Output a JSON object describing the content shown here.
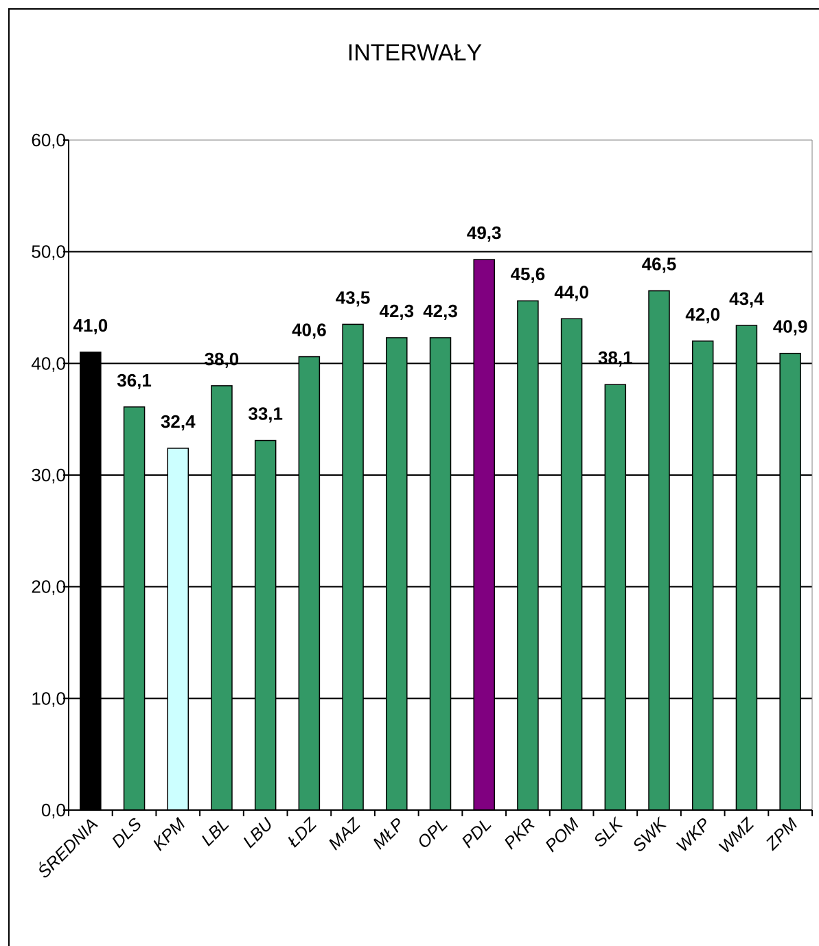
{
  "chart_data": {
    "type": "bar",
    "title": "INTERWAŁY",
    "categories": [
      "ŚREDNIA",
      "DLS",
      "KPM",
      "LBL",
      "LBU",
      "ŁDZ",
      "MAZ",
      "MŁP",
      "OPL",
      "PDL",
      "PKR",
      "POM",
      "SLK",
      "SWK",
      "WKP",
      "WMZ",
      "ZPM"
    ],
    "values": [
      41.0,
      36.1,
      32.4,
      38.0,
      33.1,
      40.6,
      43.5,
      42.3,
      42.3,
      49.3,
      45.6,
      44.0,
      38.1,
      46.5,
      42.0,
      43.4,
      40.9
    ],
    "value_labels": [
      "41,0",
      "36,1",
      "32,4",
      "38,0",
      "33,1",
      "40,6",
      "43,5",
      "42,3",
      "42,3",
      "49,3",
      "45,6",
      "44,0",
      "38,1",
      "46,5",
      "42,0",
      "43,4",
      "40,9"
    ],
    "bar_colors": [
      "#000000",
      "#339966",
      "#ccffff",
      "#339966",
      "#339966",
      "#339966",
      "#339966",
      "#339966",
      "#339966",
      "#800080",
      "#339966",
      "#339966",
      "#339966",
      "#339966",
      "#339966",
      "#339966",
      "#339966"
    ],
    "ylim": [
      0,
      60
    ],
    "yticks": [
      0,
      10,
      20,
      30,
      40,
      50,
      60
    ],
    "ytick_labels": [
      "0,0",
      "10,0",
      "20,0",
      "30,0",
      "40,0",
      "50,0",
      "60,0"
    ],
    "xlabel": "",
    "ylabel": "",
    "grid": true,
    "legend": "none"
  }
}
